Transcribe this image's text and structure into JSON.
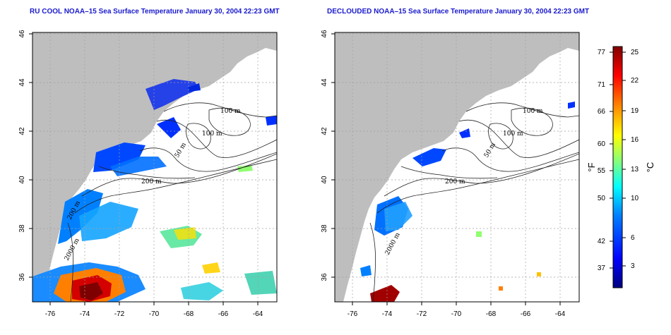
{
  "left_panel": {
    "title": "RU COOL NOAA–15 Sea Surface Temperature January 30, 2004 22:23 GMT",
    "x_ticks": [
      "-76",
      "-74",
      "-72",
      "-70",
      "-68",
      "-66",
      "-64"
    ],
    "y_ticks": [
      "46",
      "44",
      "42",
      "40",
      "38",
      "36"
    ],
    "contour_labels": [
      "100 m",
      "100 m",
      "50 m",
      "200 m",
      "200 m",
      "2000 m"
    ]
  },
  "right_panel": {
    "title": "DECLOUDED NOAA–15 Sea Surface Temperature January 30, 2004 22:23 GMT",
    "x_ticks": [
      "-76",
      "-74",
      "-72",
      "-70",
      "-68",
      "-66",
      "-64"
    ],
    "y_ticks": [
      "46",
      "44",
      "42",
      "40",
      "38",
      "36"
    ],
    "contour_labels": [
      "100 m",
      "100 m",
      "50 m",
      "200 m",
      "2000 m"
    ]
  },
  "colorbar": {
    "fahrenheit_label": "°F",
    "celsius_label": "°C",
    "fahrenheit_ticks": [
      "77",
      "71",
      "66",
      "60",
      "55",
      "50",
      "42",
      "37"
    ],
    "celsius_ticks": [
      "25",
      "22",
      "19",
      "16",
      "13",
      "10",
      "6",
      "3"
    ],
    "colors": [
      "#00007f",
      "#0000ff",
      "#0080ff",
      "#00ffff",
      "#80ff80",
      "#ffff00",
      "#ff8000",
      "#ff0000",
      "#7f0000"
    ]
  },
  "colors": {
    "land": "#bebebe",
    "ocean": "#ffffff",
    "title": "#1a1acd",
    "grid": "#a0a0a0"
  }
}
